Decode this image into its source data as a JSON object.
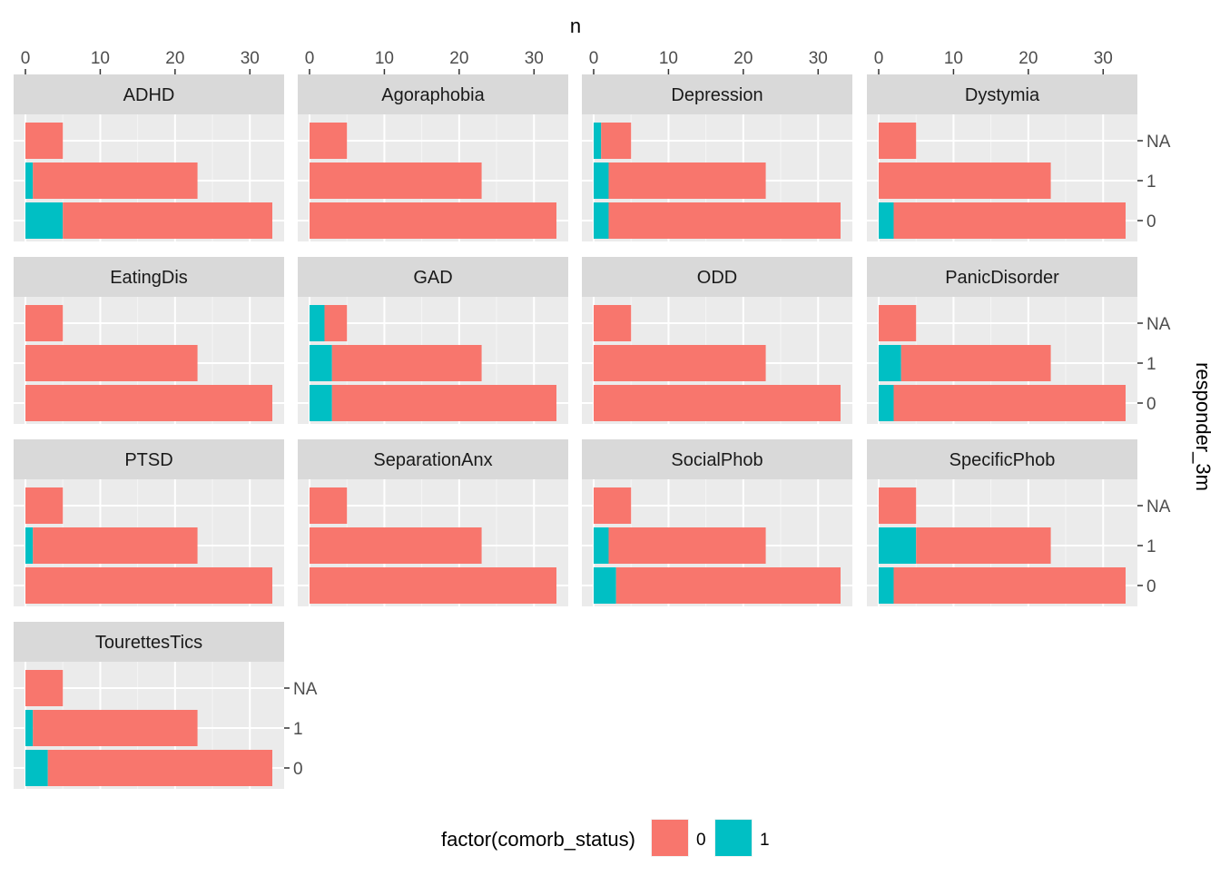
{
  "chart_data": {
    "type": "bar",
    "orientation": "horizontal",
    "stacked": true,
    "faceted": true,
    "xlabel": "n",
    "ylabel": "responder_3m",
    "xlim": [
      0,
      33
    ],
    "x_ticks": [
      0,
      10,
      20,
      30
    ],
    "x_axis_position": "top",
    "y_axis_position": "right",
    "categories": [
      "NA",
      "1",
      "0"
    ],
    "grid": true,
    "legend": {
      "title": "factor(comorb_status)",
      "position": "bottom",
      "entries": [
        {
          "label": "0",
          "color": "#F8766D"
        },
        {
          "label": "1",
          "color": "#00BFC4"
        }
      ]
    },
    "series": [
      {
        "name": "0",
        "color": "#F8766D"
      },
      {
        "name": "1",
        "color": "#00BFC4"
      }
    ],
    "panels": [
      {
        "name": "ADHD",
        "totals": [
          5,
          23,
          33
        ],
        "series1": [
          0,
          1,
          5
        ]
      },
      {
        "name": "Agoraphobia",
        "totals": [
          5,
          23,
          33
        ],
        "series1": [
          0,
          0,
          0
        ]
      },
      {
        "name": "Depression",
        "totals": [
          5,
          23,
          33
        ],
        "series1": [
          1,
          2,
          2
        ]
      },
      {
        "name": "Dystymia",
        "totals": [
          5,
          23,
          33
        ],
        "series1": [
          0,
          0,
          2
        ]
      },
      {
        "name": "EatingDis",
        "totals": [
          5,
          23,
          33
        ],
        "series1": [
          0,
          0,
          0
        ]
      },
      {
        "name": "GAD",
        "totals": [
          5,
          23,
          33
        ],
        "series1": [
          2,
          3,
          3
        ]
      },
      {
        "name": "ODD",
        "totals": [
          5,
          23,
          33
        ],
        "series1": [
          0,
          0,
          0
        ]
      },
      {
        "name": "PanicDisorder",
        "totals": [
          5,
          23,
          33
        ],
        "series1": [
          0,
          3,
          2
        ]
      },
      {
        "name": "PTSD",
        "totals": [
          5,
          23,
          33
        ],
        "series1": [
          0,
          1,
          0
        ]
      },
      {
        "name": "SeparationAnx",
        "totals": [
          5,
          23,
          33
        ],
        "series1": [
          0,
          0,
          0
        ]
      },
      {
        "name": "SocialPhob",
        "totals": [
          5,
          23,
          33
        ],
        "series1": [
          0,
          2,
          3
        ]
      },
      {
        "name": "SpecificPhob",
        "totals": [
          5,
          23,
          33
        ],
        "series1": [
          0,
          5,
          2
        ]
      },
      {
        "name": "TourettesTics",
        "totals": [
          5,
          23,
          33
        ],
        "series1": [
          0,
          1,
          3
        ]
      }
    ]
  }
}
